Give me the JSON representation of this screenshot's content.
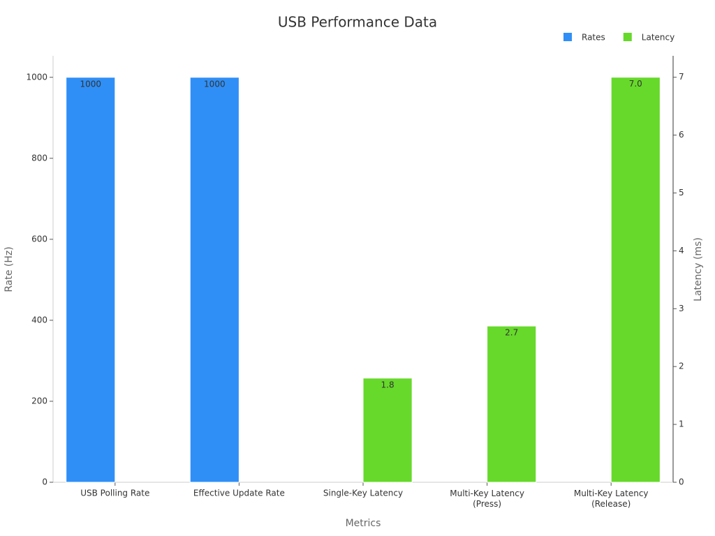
{
  "chart_data": {
    "type": "bar",
    "title": "USB Performance Data",
    "x_label": "Metrics",
    "y_label": "Rate (Hz)",
    "y2_label": "Latency (ms)",
    "categories": [
      "USB Polling Rate",
      "Effective Update Rate",
      "Single-Key Latency",
      "Multi-Key Latency\n(Press)",
      "Multi-Key Latency\n(Release)"
    ],
    "series": [
      {
        "name": "Rates",
        "color": "#2f8ff7",
        "values": [
          1000,
          1000,
          null,
          null,
          null
        ]
      },
      {
        "name": "Latency",
        "color": "#66d92a",
        "axis": "y2",
        "values": [
          null,
          null,
          1.8,
          2.7,
          7.0
        ],
        "value_labels": [
          null,
          null,
          "1.8",
          "2.7",
          "7.0"
        ]
      }
    ],
    "ylim": [
      0,
      1053
    ],
    "yticks": [
      0,
      200,
      400,
      600,
      800,
      1000
    ],
    "y2lim": [
      0,
      7.37
    ],
    "y2ticks": [
      0,
      1,
      2,
      3,
      4,
      5,
      6,
      7
    ],
    "legend": "top-right",
    "grid": false
  }
}
